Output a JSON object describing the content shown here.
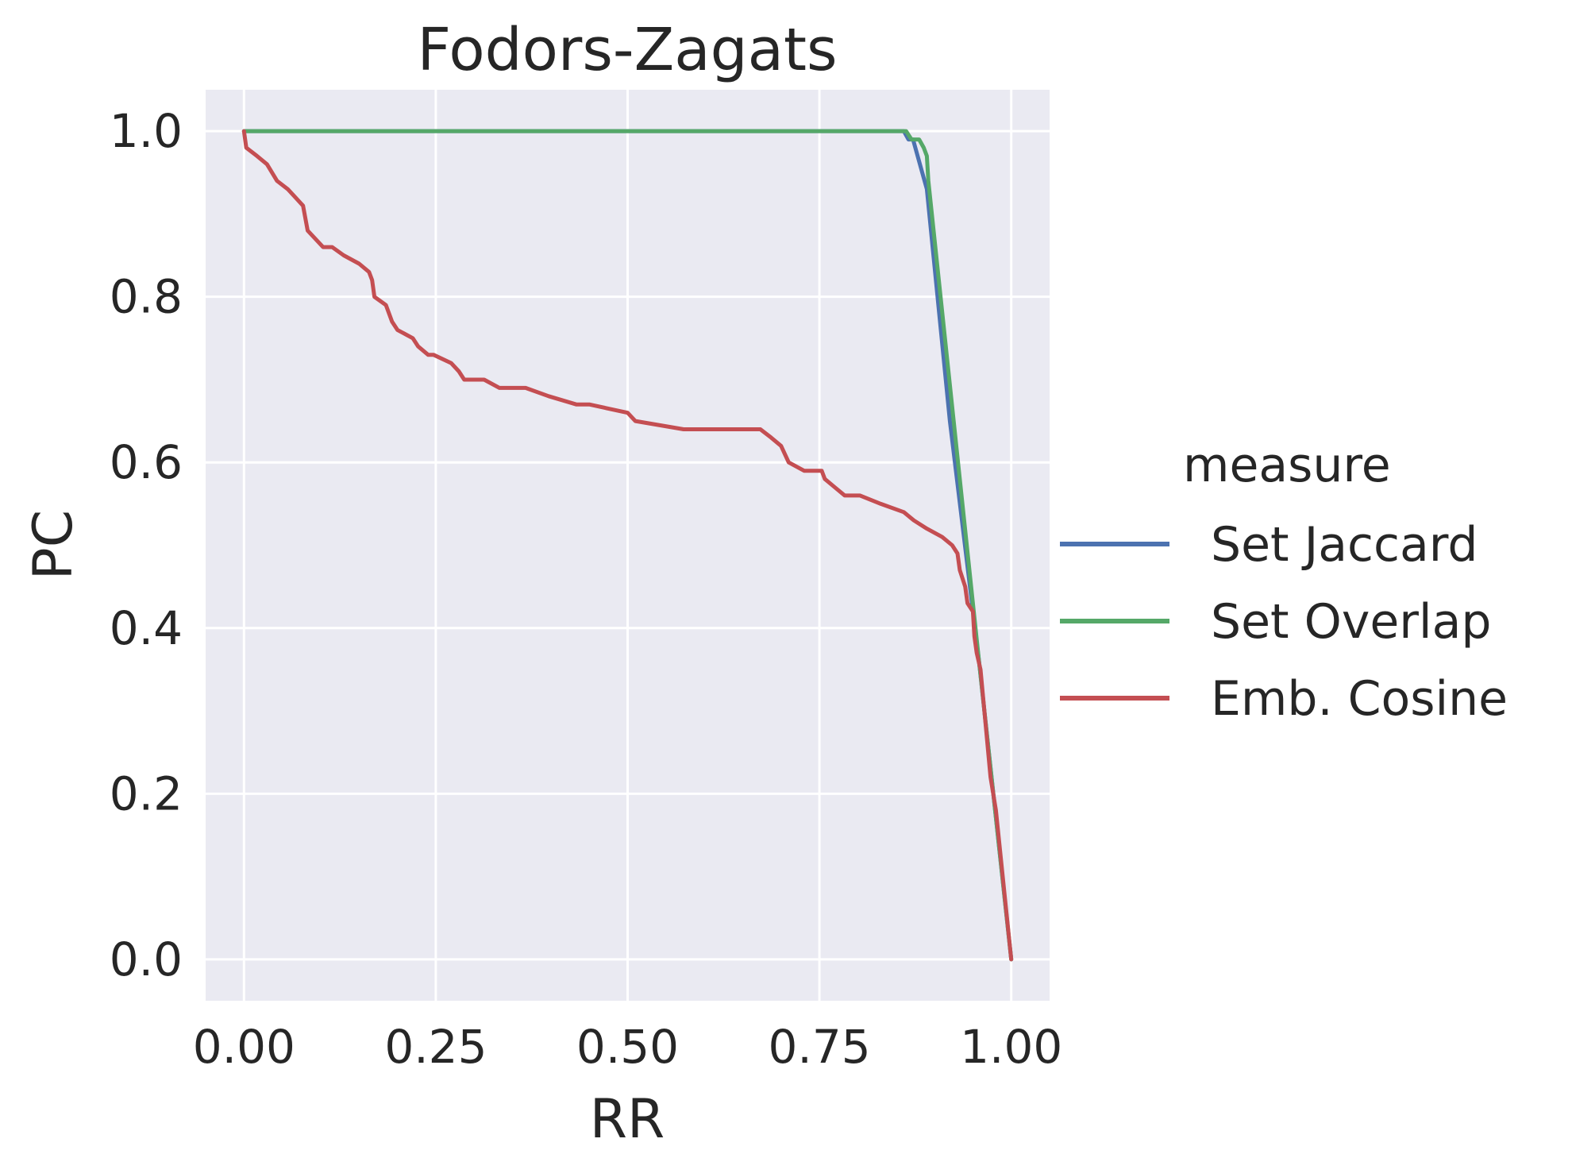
{
  "chart_data": {
    "type": "line",
    "title": "Fodors-Zagats",
    "xlabel": "RR",
    "ylabel": "PC",
    "xlim": [
      -0.05,
      1.05
    ],
    "ylim": [
      -0.05,
      1.05
    ],
    "xticks": [
      0.0,
      0.25,
      0.5,
      0.75,
      1.0
    ],
    "xtick_labels": [
      "0.00",
      "0.25",
      "0.50",
      "0.75",
      "1.00"
    ],
    "yticks": [
      0.0,
      0.2,
      0.4,
      0.6,
      0.8,
      1.0
    ],
    "ytick_labels": [
      "0.0",
      "0.2",
      "0.4",
      "0.6",
      "0.8",
      "1.0"
    ],
    "grid": true,
    "legend_title": "measure",
    "legend_position": "right",
    "series": [
      {
        "name": "Set Jaccard",
        "color": "#4c72b0",
        "x": [
          0.0,
          0.86,
          0.866,
          0.872,
          0.878,
          0.884,
          0.89,
          0.92,
          0.958,
          1.0
        ],
        "y": [
          1.0,
          1.0,
          0.99,
          0.99,
          0.97,
          0.95,
          0.93,
          0.65,
          0.36,
          0.0
        ]
      },
      {
        "name": "Set Overlap",
        "color": "#55a868",
        "x": [
          0.0,
          0.863,
          0.87,
          0.88,
          0.886,
          0.89,
          0.892,
          0.925,
          0.958,
          1.0
        ],
        "y": [
          1.0,
          1.0,
          0.99,
          0.99,
          0.98,
          0.97,
          0.94,
          0.65,
          0.36,
          0.0
        ]
      },
      {
        "name": "Emb. Cosine",
        "color": "#c44e52",
        "x": [
          0.0,
          0.003,
          0.017,
          0.03,
          0.043,
          0.057,
          0.067,
          0.077,
          0.083,
          0.093,
          0.103,
          0.115,
          0.13,
          0.15,
          0.163,
          0.167,
          0.17,
          0.185,
          0.193,
          0.2,
          0.22,
          0.227,
          0.24,
          0.247,
          0.27,
          0.28,
          0.287,
          0.313,
          0.333,
          0.367,
          0.397,
          0.433,
          0.45,
          0.5,
          0.51,
          0.573,
          0.673,
          0.687,
          0.7,
          0.71,
          0.73,
          0.753,
          0.757,
          0.77,
          0.783,
          0.803,
          0.83,
          0.86,
          0.873,
          0.89,
          0.91,
          0.923,
          0.93,
          0.933,
          0.94,
          0.943,
          0.95,
          0.952,
          0.955,
          0.96,
          0.973,
          0.98,
          1.0
        ],
        "y": [
          1.0,
          0.98,
          0.97,
          0.96,
          0.94,
          0.93,
          0.92,
          0.91,
          0.88,
          0.87,
          0.86,
          0.86,
          0.85,
          0.84,
          0.83,
          0.82,
          0.8,
          0.79,
          0.77,
          0.76,
          0.75,
          0.74,
          0.73,
          0.73,
          0.72,
          0.71,
          0.7,
          0.7,
          0.69,
          0.69,
          0.68,
          0.67,
          0.67,
          0.66,
          0.65,
          0.64,
          0.64,
          0.63,
          0.62,
          0.6,
          0.59,
          0.59,
          0.58,
          0.57,
          0.56,
          0.56,
          0.55,
          0.54,
          0.53,
          0.52,
          0.51,
          0.5,
          0.49,
          0.47,
          0.45,
          0.43,
          0.42,
          0.39,
          0.37,
          0.35,
          0.22,
          0.18,
          0.0
        ]
      }
    ]
  }
}
